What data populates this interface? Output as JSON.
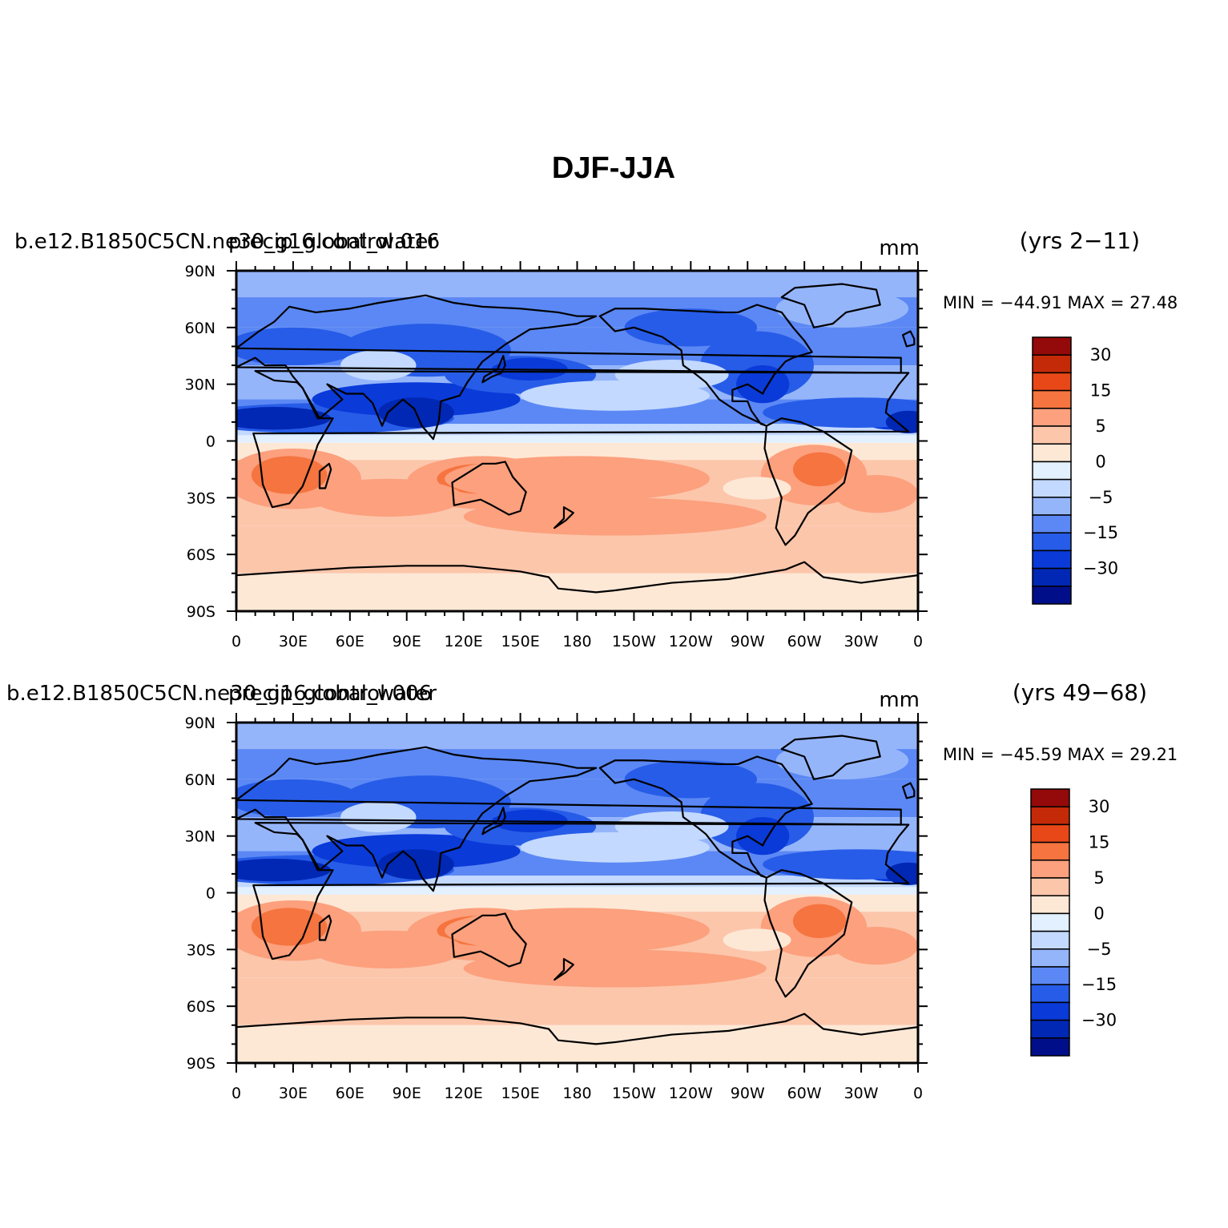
{
  "title": "DJF-JJA",
  "chart_data": [
    {
      "type": "heatmap",
      "case_name": "b.e12.B1850C5CN.ne30_g16.control.016",
      "variable": "precip_global_water",
      "years": "(yrs 2−11)",
      "units": "mm",
      "min_max_text": "MIN = −44.91  MAX =   27.48",
      "min": -44.91,
      "max": 27.48,
      "x_ticks": [
        "0",
        "30E",
        "60E",
        "90E",
        "120E",
        "150E",
        "180",
        "150W",
        "120W",
        "90W",
        "60W",
        "30W",
        "0"
      ],
      "y_ticks": [
        "90N",
        "60N",
        "30N",
        "0",
        "30S",
        "60S",
        "90S"
      ],
      "xlim": [
        0,
        360
      ],
      "ylim": [
        -90,
        90
      ],
      "colorbar": {
        "levels": [
          -40,
          -30,
          -20,
          -15,
          -10,
          -5,
          -2,
          0,
          2,
          5,
          10,
          15,
          20,
          30,
          40
        ],
        "labels": [
          "30",
          "15",
          "5",
          "0",
          "−5",
          "−15",
          "−30"
        ]
      }
    },
    {
      "type": "heatmap",
      "case_name": "b.e12.B1850C5CN.ne30_g16.control.006",
      "variable": "precip_global_water",
      "years": "(yrs 49−68)",
      "units": "mm",
      "min_max_text": "MIN = −45.59  MAX =   29.21",
      "min": -45.59,
      "max": 29.21,
      "x_ticks": [
        "0",
        "30E",
        "60E",
        "90E",
        "120E",
        "150E",
        "180",
        "150W",
        "120W",
        "90W",
        "60W",
        "30W",
        "0"
      ],
      "y_ticks": [
        "90N",
        "60N",
        "30N",
        "0",
        "30S",
        "60S",
        "90S"
      ],
      "xlim": [
        0,
        360
      ],
      "ylim": [
        -90,
        90
      ],
      "colorbar": {
        "levels": [
          -40,
          -30,
          -20,
          -15,
          -10,
          -5,
          -2,
          0,
          2,
          5,
          10,
          15,
          20,
          30,
          40
        ],
        "labels": [
          "30",
          "15",
          "5",
          "0",
          "−5",
          "−15",
          "−30"
        ]
      }
    }
  ],
  "palette": [
    "#000f89",
    "#0028b4",
    "#0a3ad8",
    "#275ce8",
    "#5b88f4",
    "#95b5fb",
    "#c3d9ff",
    "#e2f0ff",
    "#fde8d6",
    "#fcc6ab",
    "#fca07d",
    "#f5743f",
    "#e84818",
    "#c42a08",
    "#940909"
  ],
  "coast_color": "#000000"
}
